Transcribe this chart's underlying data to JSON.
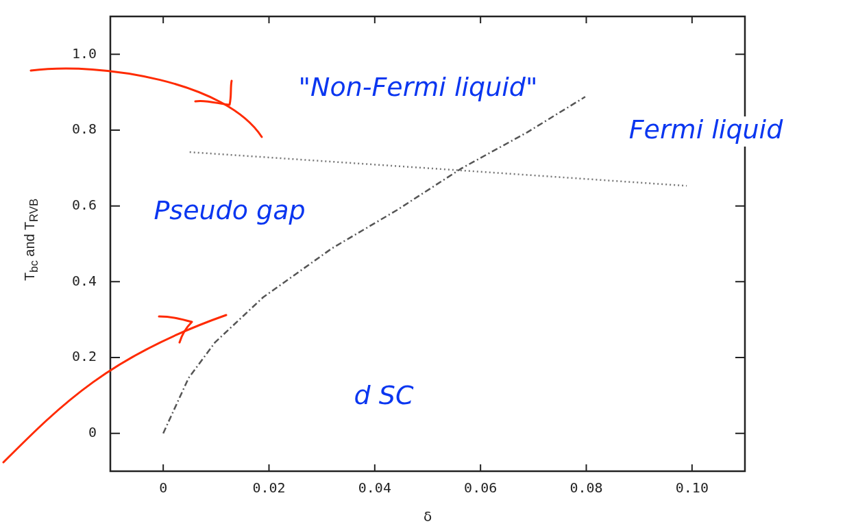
{
  "chart_data": {
    "type": "line",
    "xlabel": "δ",
    "ylabel": "T$_{bc}$ and T$_{RVB}$",
    "xlim": [
      -0.01,
      0.11
    ],
    "xticks": [
      0,
      0.02,
      0.04,
      0.06,
      0.08,
      {
        "value": 0.1,
        "label": "0.10"
      }
    ],
    "ylim": [
      -0.1,
      1.1
    ],
    "yticks": [
      0,
      0.2,
      0.4,
      0.6,
      0.8,
      {
        "value": 1,
        "label": "1.0"
      }
    ],
    "grid": false,
    "legend": false,
    "marker": "none",
    "series": [
      {
        "color": "#777777",
        "line_style": "dotted",
        "x": [
          0.005,
          0.056,
          0.099
        ],
        "values": [
          0.742,
          0.694,
          0.653
        ]
      },
      {
        "color": "#555555",
        "line_style": "dashed",
        "x": [
          0,
          0.0048,
          0.0098,
          0.0189,
          0.0319,
          0.0442,
          0.0564,
          0.0688,
          0.0798
        ],
        "values": [
          0,
          0.146,
          0.24,
          0.359,
          0.488,
          0.589,
          0.699,
          0.794,
          0.888
        ]
      }
    ],
    "annotations": [
      "\"Non-Fermi liquid\"",
      "Fermi liquid",
      "Pseudo gap",
      "d SC"
    ]
  }
}
